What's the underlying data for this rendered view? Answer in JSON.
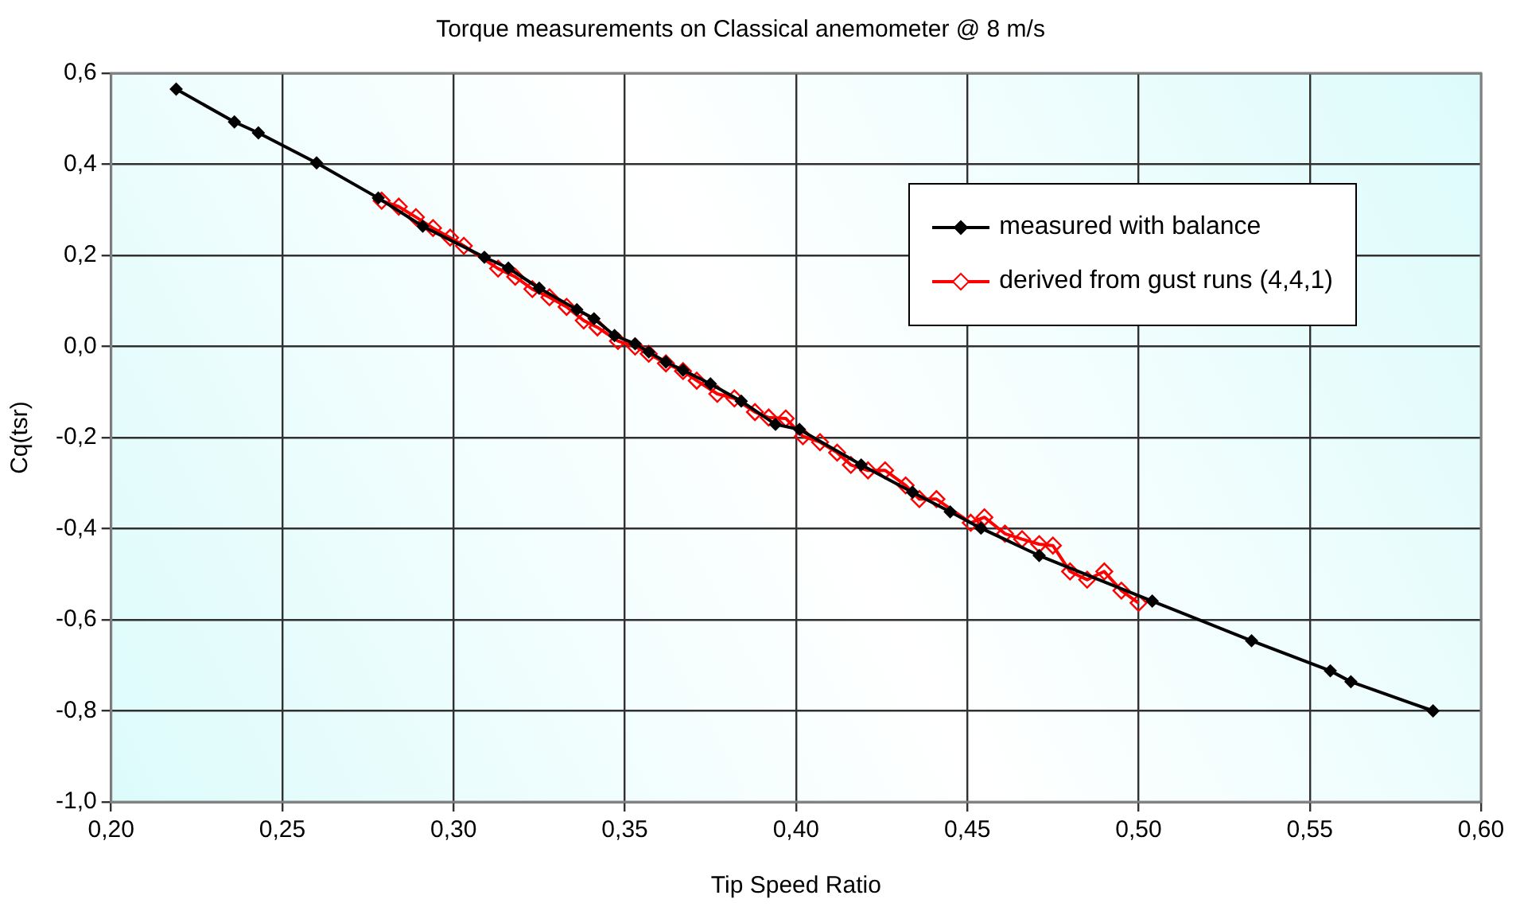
{
  "chart_data": {
    "type": "line",
    "title": "Torque measurements on Classical anemometer @ 8 m/s",
    "xlabel": "Tip Speed Ratio",
    "ylabel": "Cq(tsr)",
    "xlim": [
      0.2,
      0.6
    ],
    "xticks": [
      {
        "value": 0.2,
        "label": "0,20"
      },
      {
        "value": 0.25,
        "label": "0,25"
      },
      {
        "value": 0.3,
        "label": "0,30"
      },
      {
        "value": 0.35,
        "label": "0,35"
      },
      {
        "value": 0.4,
        "label": "0,40"
      },
      {
        "value": 0.45,
        "label": "0,45"
      },
      {
        "value": 0.5,
        "label": "0,50"
      },
      {
        "value": 0.55,
        "label": "0,55"
      },
      {
        "value": 0.6,
        "label": "0,60"
      }
    ],
    "ylim": [
      -1.0,
      0.6
    ],
    "yticks": [
      {
        "value": -1.0,
        "label": "-1,0"
      },
      {
        "value": -0.8,
        "label": "-0,8"
      },
      {
        "value": -0.6,
        "label": "-0,6"
      },
      {
        "value": -0.4,
        "label": "-0,4"
      },
      {
        "value": -0.2,
        "label": "-0,2"
      },
      {
        "value": 0,
        "label": "0,0"
      },
      {
        "value": 0.2,
        "label": "0,2"
      },
      {
        "value": 0.4,
        "label": "0,4"
      },
      {
        "value": 0.6,
        "label": "0,6"
      }
    ],
    "grid": true,
    "legend": "top right",
    "line_style": "solid",
    "series": [
      {
        "name": "measured with balance",
        "color": "#000000",
        "marker": "diamond",
        "x": [
          0.219,
          0.236,
          0.243,
          0.26,
          0.278,
          0.291,
          0.309,
          0.316,
          0.325,
          0.336,
          0.341,
          0.347,
          0.353,
          0.357,
          0.362,
          0.367,
          0.375,
          0.384,
          0.394,
          0.401,
          0.419,
          0.434,
          0.445,
          0.454,
          0.471,
          0.504,
          0.533,
          0.556,
          0.562,
          0.586
        ],
        "values": [
          0.565,
          0.493,
          0.469,
          0.403,
          0.326,
          0.264,
          0.196,
          0.172,
          0.128,
          0.081,
          0.061,
          0.024,
          0.006,
          -0.012,
          -0.034,
          -0.052,
          -0.082,
          -0.12,
          -0.171,
          -0.182,
          -0.26,
          -0.32,
          -0.363,
          -0.399,
          -0.459,
          -0.559,
          -0.646,
          -0.712,
          -0.736,
          -0.8
        ]
      },
      {
        "name": "derived from gust runs (4,4,1)",
        "color": "#ff0000",
        "marker": "diamond_open",
        "x": [
          0.279,
          0.284,
          0.289,
          0.294,
          0.299,
          0.303,
          0.313,
          0.318,
          0.323,
          0.328,
          0.333,
          0.338,
          0.342,
          0.348,
          0.353,
          0.357,
          0.362,
          0.367,
          0.371,
          0.377,
          0.382,
          0.388,
          0.392,
          0.397,
          0.402,
          0.407,
          0.412,
          0.416,
          0.421,
          0.426,
          0.432,
          0.436,
          0.441,
          0.451,
          0.455,
          0.461,
          0.466,
          0.471,
          0.475,
          0.48,
          0.485,
          0.49,
          0.495,
          0.5
        ],
        "values": [
          0.32,
          0.307,
          0.284,
          0.26,
          0.239,
          0.221,
          0.171,
          0.153,
          0.126,
          0.108,
          0.087,
          0.057,
          0.042,
          0.012,
          0,
          -0.016,
          -0.037,
          -0.054,
          -0.075,
          -0.104,
          -0.114,
          -0.144,
          -0.156,
          -0.158,
          -0.197,
          -0.21,
          -0.233,
          -0.26,
          -0.272,
          -0.272,
          -0.305,
          -0.335,
          -0.335,
          -0.387,
          -0.375,
          -0.411,
          -0.423,
          -0.434,
          -0.437,
          -0.494,
          -0.512,
          -0.494,
          -0.536,
          -0.563
        ]
      }
    ]
  }
}
